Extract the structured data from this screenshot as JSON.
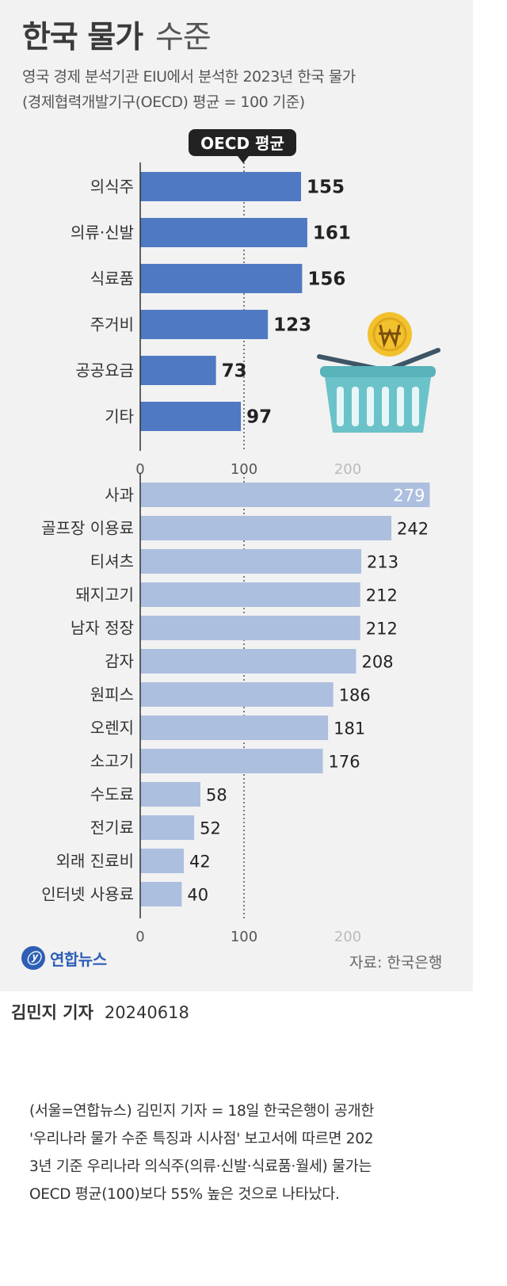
{
  "title": "한국 물가",
  "title_suffix": "수준",
  "subtitle_line1": "영국 경제 분석기관 EIU에서 분석한 2023년 한국 물가",
  "subtitle_line2": "(경제협력개발기구(OECD) 평균 = 100 기준)",
  "reference_label": "OECD 평균",
  "brand_name": "연합뉴스",
  "source": "자료: 한국은행",
  "byline_name": "김민지 기자",
  "byline_date": "20240618",
  "article_lines": [
    "(서울=연합뉴스) 김민지 기자 = 18일 한국은행이 공개한",
    "'우리나라 물가 수준 특징과 시사점' 보고서에 따르면 202",
    "3년 기준 우리나라 의식주(의류·신발·식료품·월세) 물가는",
    "OECD 평균(100)보다 55% 높은 것으로 나타났다."
  ],
  "colors": {
    "top_bar": "#4f79c3",
    "bottom_bar": "#adbfdf",
    "axis": "#333333",
    "basket": "#6bc3c9",
    "coin": "#f2c12e"
  },
  "icons": [
    "shopping-basket-icon",
    "won-coin-icon",
    "yonhap-logo-icon"
  ],
  "chart_data": [
    {
      "type": "bar",
      "orientation": "horizontal",
      "categories": [
        "의식주",
        "의류·신발",
        "식료품",
        "주거비",
        "공공요금",
        "기타"
      ],
      "values": [
        155,
        161,
        156,
        123,
        73,
        97
      ],
      "xlim": [
        0,
        280
      ],
      "xticks": [
        0,
        100,
        200
      ],
      "reference_line": 100
    },
    {
      "type": "bar",
      "orientation": "horizontal",
      "categories": [
        "사과",
        "골프장 이용료",
        "티셔츠",
        "돼지고기",
        "남자 정장",
        "감자",
        "원피스",
        "오렌지",
        "소고기",
        "수도료",
        "전기료",
        "외래 진료비",
        "인터넷 사용료"
      ],
      "values": [
        279,
        242,
        213,
        212,
        212,
        208,
        186,
        181,
        176,
        58,
        52,
        42,
        40
      ],
      "xlim": [
        0,
        280
      ],
      "xticks": [
        0,
        100,
        200
      ],
      "reference_line": 100
    }
  ]
}
